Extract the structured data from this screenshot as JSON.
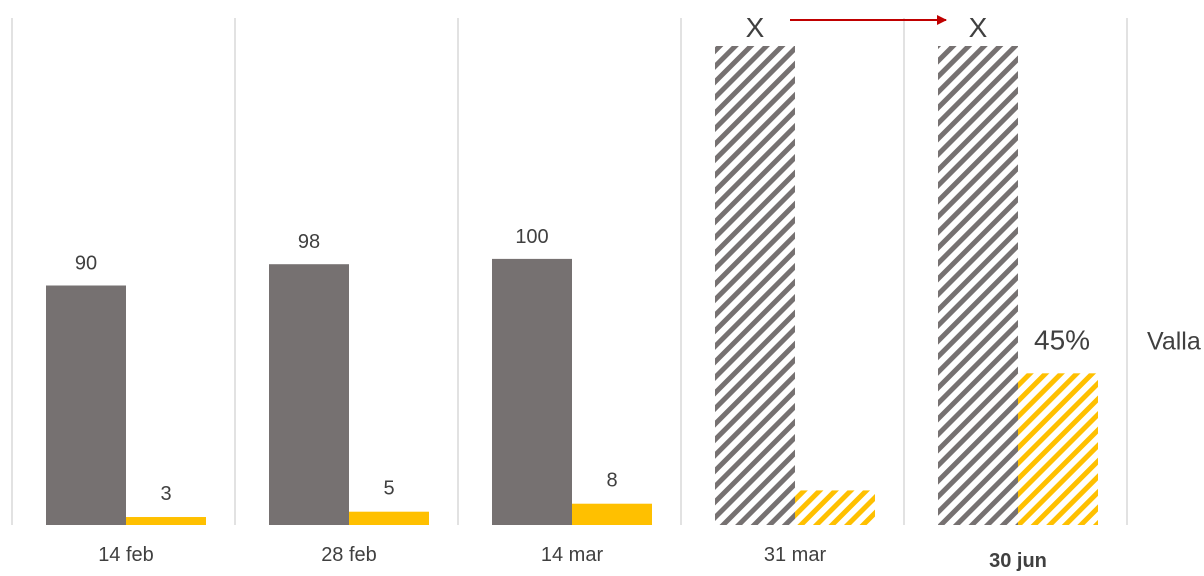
{
  "chart_data": {
    "type": "bar",
    "categories": [
      "14 feb",
      "28 feb",
      "14 mar",
      "31 mar",
      "30 jun"
    ],
    "series": [
      {
        "values": [
          90,
          98,
          100,
          null,
          null
        ],
        "data_labels": [
          "90",
          "98",
          "100",
          "X",
          "X"
        ],
        "projected": [
          false,
          false,
          false,
          true,
          true
        ]
      },
      {
        "values": [
          3,
          5,
          8,
          13,
          57
        ],
        "data_labels": [
          "3",
          "5",
          "8",
          "",
          ""
        ],
        "projected": [
          false,
          false,
          false,
          true,
          true
        ]
      }
    ],
    "ylim": [
      0,
      180
    ],
    "grid": "vertical separators",
    "annotation": {
      "percent": "45%",
      "text": "Valla"
    },
    "arrow": {
      "from": "31 mar",
      "to": "30 jun"
    },
    "bold_category": "30 jun"
  },
  "colors": {
    "bar_gray": "#767171",
    "bar_yellow": "#FFC000",
    "grid": "#D9D9D9",
    "label": "#404040",
    "accent_red": "#C00000"
  }
}
